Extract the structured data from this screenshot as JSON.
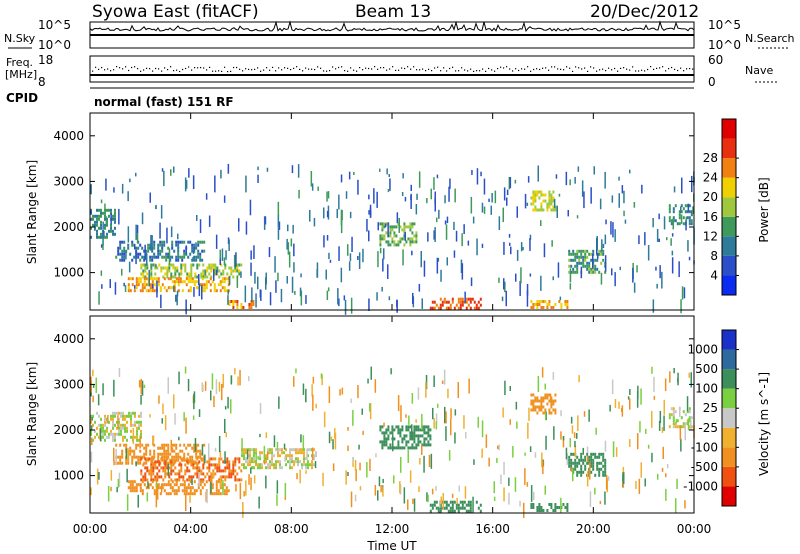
{
  "header": {
    "station": "Syowa East (fitACF)",
    "beam": "Beam 13",
    "date": "20/Dec/2012"
  },
  "left_labels": {
    "nsky": "N.Sky",
    "freq_line1": "Freq.",
    "freq_line2": "[MHz]",
    "cpid": "CPID"
  },
  "right_labels": {
    "nsearch": "N.Search",
    "nave": "Nave"
  },
  "tick_labels": {
    "noise_top": "10^5",
    "noise_bottom": "10^0",
    "freq_top": "18",
    "freq_bottom": "8",
    "nave_top": "60",
    "nave_bottom": "0"
  },
  "cpid_text": "normal (fast) 151 RF",
  "colors": {
    "frame": "#000000",
    "missing": "#ffffff"
  },
  "chart_data": [
    {
      "type": "heatmap",
      "panel": "power",
      "xlabel": "",
      "ylabel": "Slant Range [km]",
      "x_ticks": [
        "00:00",
        "04:00",
        "08:00",
        "12:00",
        "16:00",
        "20:00",
        "00:00"
      ],
      "y_ticks": [
        "1000",
        "2000",
        "3000",
        "4000"
      ],
      "ylim": [
        180,
        4500
      ],
      "colorbar": {
        "label": "Power [dB]",
        "ticks": [
          "4",
          "8",
          "12",
          "16",
          "20",
          "24",
          "28"
        ],
        "colors": [
          "#0a2cf0",
          "#2a4fc8",
          "#2e7a9a",
          "#3e9a5a",
          "#9fc83c",
          "#f0d000",
          "#f08010",
          "#e83010",
          "#e00000"
        ]
      },
      "echo_regions": [
        {
          "t_start": "00:00",
          "t_end": "01:00",
          "range_km": [
            1800,
            2400
          ],
          "level_db": 12
        },
        {
          "t_start": "01:00",
          "t_end": "04:30",
          "range_km": [
            1300,
            1700
          ],
          "level_db": 10
        },
        {
          "t_start": "02:00",
          "t_end": "06:00",
          "range_km": [
            900,
            1200
          ],
          "level_db": 18
        },
        {
          "t_start": "01:30",
          "t_end": "05:30",
          "range_km": [
            600,
            900
          ],
          "level_db": 24
        },
        {
          "t_start": "05:30",
          "t_end": "06:30",
          "range_km": [
            250,
            400
          ],
          "level_db": 26
        },
        {
          "t_start": "11:30",
          "t_end": "13:00",
          "range_km": [
            1600,
            2100
          ],
          "level_db": 16
        },
        {
          "t_start": "13:30",
          "t_end": "15:30",
          "range_km": [
            250,
            450
          ],
          "level_db": 28
        },
        {
          "t_start": "17:30",
          "t_end": "18:30",
          "range_km": [
            2400,
            2800
          ],
          "level_db": 20
        },
        {
          "t_start": "17:30",
          "t_end": "19:00",
          "range_km": [
            250,
            400
          ],
          "level_db": 24
        },
        {
          "t_start": "19:00",
          "t_end": "20:30",
          "range_km": [
            1000,
            1500
          ],
          "level_db": 14
        },
        {
          "t_start": "23:00",
          "t_end": "23:55",
          "range_km": [
            2100,
            2500
          ],
          "level_db": 12
        }
      ]
    },
    {
      "type": "heatmap",
      "panel": "velocity",
      "xlabel": "Time UT",
      "ylabel": "Slant Range [km]",
      "x_ticks": [
        "00:00",
        "04:00",
        "08:00",
        "12:00",
        "16:00",
        "20:00",
        "00:00"
      ],
      "y_ticks": [
        "1000",
        "2000",
        "3000",
        "4000"
      ],
      "ylim": [
        180,
        4500
      ],
      "colorbar": {
        "label": "Velocity [m s^-1]",
        "ticks": [
          "1000",
          "500",
          "100",
          "25",
          "-25",
          "-100",
          "-500",
          "-1000"
        ],
        "colors": [
          "#1a30c8",
          "#2e6a9e",
          "#3b8f5a",
          "#7ad040",
          "#c8c8c8",
          "#f0b030",
          "#f09020",
          "#f05010",
          "#e00000"
        ]
      },
      "echo_regions": [
        {
          "t_start": "00:00",
          "t_end": "02:00",
          "range_km": [
            1800,
            2400
          ],
          "velocity": 0
        },
        {
          "t_start": "01:00",
          "t_end": "04:30",
          "range_km": [
            1300,
            1700
          ],
          "velocity": -200
        },
        {
          "t_start": "02:00",
          "t_end": "06:00",
          "range_km": [
            900,
            1400
          ],
          "velocity": -500
        },
        {
          "t_start": "01:30",
          "t_end": "05:30",
          "range_km": [
            600,
            900
          ],
          "velocity": -300
        },
        {
          "t_start": "06:00",
          "t_end": "09:00",
          "range_km": [
            1200,
            1600
          ],
          "velocity": 0
        },
        {
          "t_start": "11:30",
          "t_end": "13:30",
          "range_km": [
            1600,
            2100
          ],
          "velocity": 200
        },
        {
          "t_start": "13:30",
          "t_end": "15:30",
          "range_km": [
            250,
            450
          ],
          "velocity": 300
        },
        {
          "t_start": "17:30",
          "t_end": "18:30",
          "range_km": [
            2400,
            2800
          ],
          "velocity": -300
        },
        {
          "t_start": "17:30",
          "t_end": "19:00",
          "range_km": [
            250,
            400
          ],
          "velocity": 300
        },
        {
          "t_start": "19:00",
          "t_end": "20:30",
          "range_km": [
            1000,
            1500
          ],
          "velocity": 200
        },
        {
          "t_start": "23:00",
          "t_end": "23:55",
          "range_km": [
            2100,
            2500
          ],
          "velocity": 0
        }
      ]
    }
  ]
}
